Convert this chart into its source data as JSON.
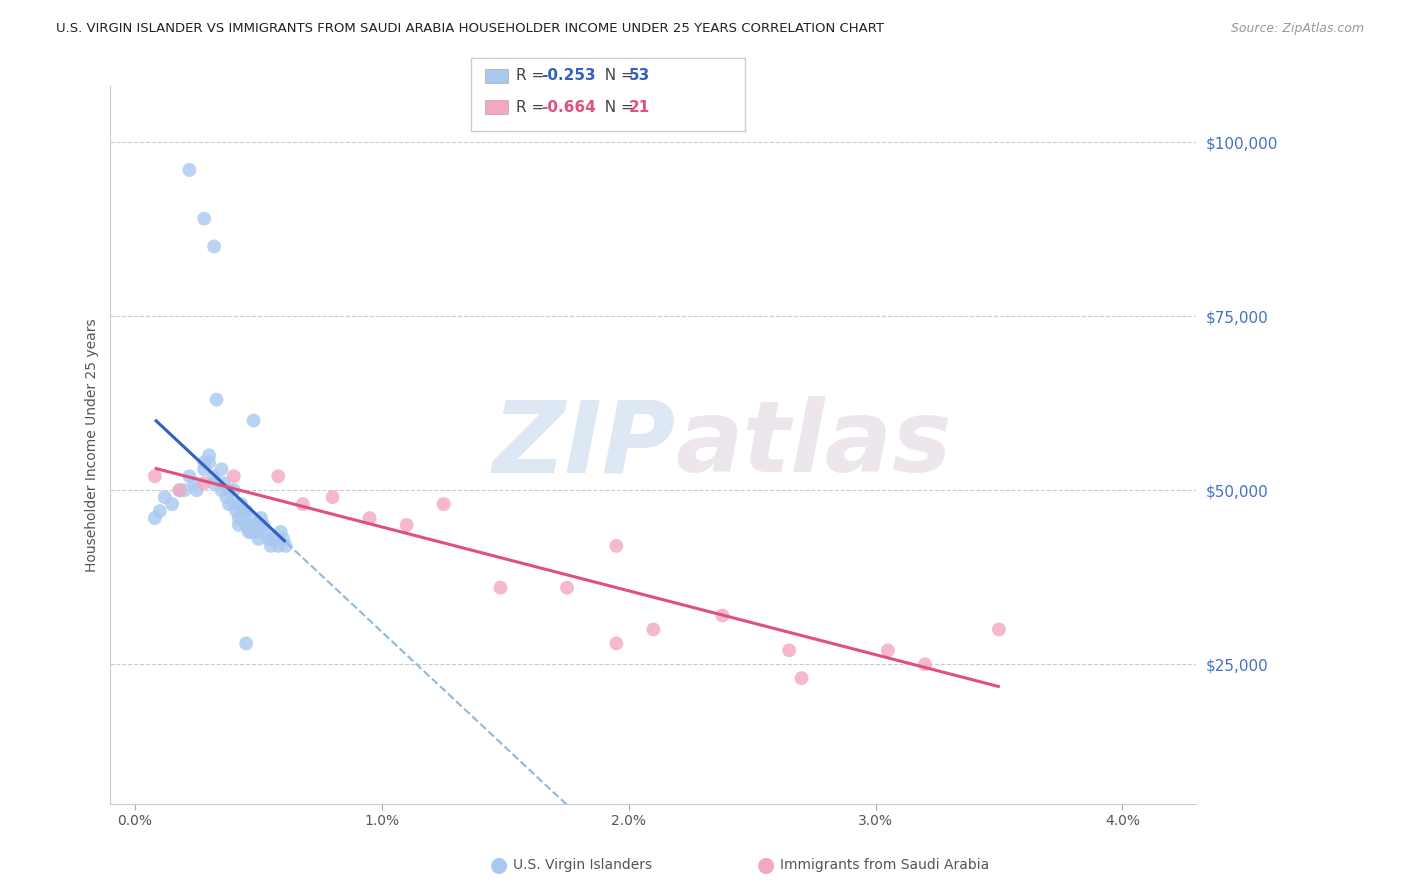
{
  "title": "U.S. VIRGIN ISLANDER VS IMMIGRANTS FROM SAUDI ARABIA HOUSEHOLDER INCOME UNDER 25 YEARS CORRELATION CHART",
  "source": "Source: ZipAtlas.com",
  "ylabel": "Householder Income Under 25 years",
  "xlabel_ticks": [
    "0.0%",
    "1.0%",
    "2.0%",
    "3.0%",
    "4.0%"
  ],
  "xlabel_vals": [
    0.0,
    0.01,
    0.02,
    0.03,
    0.04
  ],
  "ylabel_ticks": [
    "$25,000",
    "$50,000",
    "$75,000",
    "$100,000"
  ],
  "ylabel_vals": [
    25000,
    50000,
    75000,
    100000
  ],
  "ylim": [
    5000,
    108000
  ],
  "xlim": [
    -0.001,
    0.043
  ],
  "blue_R": -0.253,
  "blue_N": 53,
  "pink_R": -0.664,
  "pink_N": 21,
  "blue_color": "#a8c8f0",
  "pink_color": "#f4a8c0",
  "blue_line_color": "#3060c0",
  "pink_line_color": "#e0507a",
  "dashed_line_color": "#90b8e0",
  "watermark_zip": "ZIP",
  "watermark_atlas": "atlas",
  "blue_scatter_x": [
    0.0008,
    0.001,
    0.0012,
    0.0015,
    0.0018,
    0.002,
    0.0022,
    0.0024,
    0.0025,
    0.0028,
    0.0028,
    0.003,
    0.003,
    0.0032,
    0.0032,
    0.0033,
    0.0035,
    0.0035,
    0.0036,
    0.0037,
    0.0038,
    0.0038,
    0.004,
    0.004,
    0.0041,
    0.0042,
    0.0042,
    0.0043,
    0.0044,
    0.0045,
    0.0045,
    0.0046,
    0.0047,
    0.0047,
    0.0048,
    0.0049,
    0.005,
    0.005,
    0.0051,
    0.0052,
    0.0053,
    0.0054,
    0.0055,
    0.0056,
    0.0058,
    0.0059,
    0.006,
    0.0061,
    0.0028,
    0.0032,
    0.0048,
    0.0022,
    0.0045
  ],
  "blue_scatter_y": [
    46000,
    47000,
    49000,
    48000,
    50000,
    50000,
    52000,
    51000,
    50000,
    54000,
    53000,
    55000,
    54000,
    52000,
    51000,
    63000,
    53000,
    50000,
    51000,
    49000,
    50000,
    48000,
    50000,
    48000,
    47000,
    46000,
    45000,
    48000,
    47000,
    47000,
    45000,
    44000,
    46000,
    44000,
    45000,
    44000,
    45000,
    43000,
    46000,
    45000,
    44000,
    43000,
    42000,
    43000,
    42000,
    44000,
    43000,
    42000,
    89000,
    85000,
    60000,
    96000,
    28000
  ],
  "pink_scatter_x": [
    0.0008,
    0.0018,
    0.0028,
    0.004,
    0.0058,
    0.0068,
    0.008,
    0.0095,
    0.011,
    0.0125,
    0.0148,
    0.0175,
    0.0195,
    0.021,
    0.0238,
    0.0265,
    0.0305,
    0.027,
    0.032,
    0.035,
    0.0195
  ],
  "pink_scatter_y": [
    52000,
    50000,
    51000,
    52000,
    52000,
    48000,
    49000,
    46000,
    45000,
    48000,
    36000,
    36000,
    42000,
    30000,
    32000,
    27000,
    27000,
    23000,
    25000,
    30000,
    28000
  ]
}
